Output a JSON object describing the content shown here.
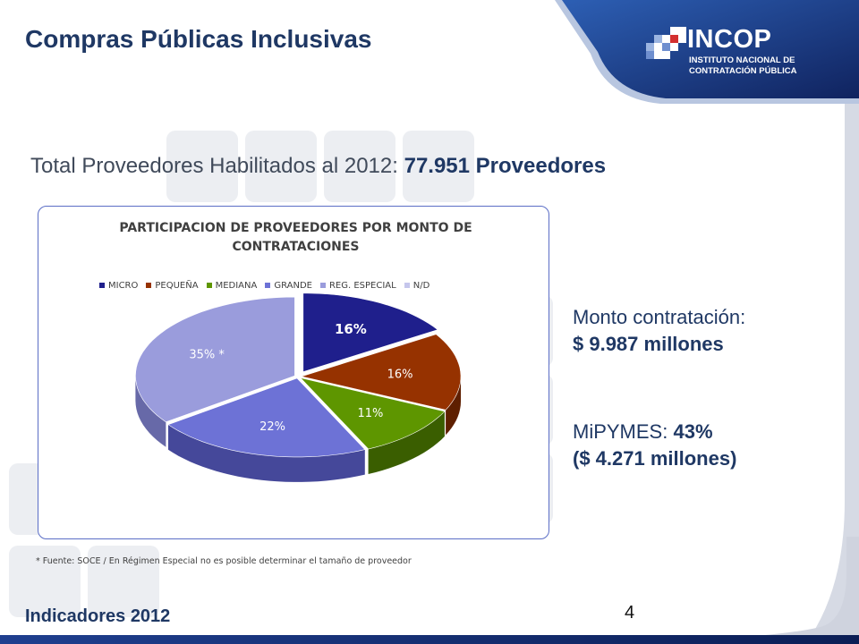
{
  "slide": {
    "title": "Compras Públicas Inclusivas",
    "footer_label": "Indicadores 2012",
    "page_number": "4",
    "brand_color": "#1f3864",
    "accent_color": "#3556a8"
  },
  "logo": {
    "name": "INCOP",
    "line1": "INSTITUTO NACIONAL DE",
    "line2": "CONTRATACIÓN PÚBLICA",
    "mosaic_icon": "pixel-mosaic-icon"
  },
  "summary": {
    "prefix": "Total Proveedores Habilitados al 2012: ",
    "value": "77.951 Proveedores"
  },
  "side_stats": {
    "monto_label": "Monto contratación:",
    "monto_value": "$ 9.987 millones",
    "mipymes_label": "MiPYMES: ",
    "mipymes_pct": "43%",
    "mipymes_amount": "($ 4.271 millones)"
  },
  "chart_data": {
    "type": "pie",
    "title": "PARTICIPACION DE PROVEEDORES POR MONTO DE CONTRATACIONES",
    "title_line1": "PARTICIPACION DE PROVEEDORES POR MONTO DE",
    "title_line2": "CONTRATACIONES",
    "legend_position": "top",
    "categories": [
      "MICRO",
      "PEQUEÑA",
      "MEDIANA",
      "GRANDE",
      "REG. ESPECIAL",
      "N/D"
    ],
    "values": [
      16,
      16,
      11,
      22,
      35,
      0
    ],
    "data_labels": [
      "16%",
      "16%",
      "11%",
      "22%",
      "35% *",
      ""
    ],
    "colors": [
      "#1f1f8c",
      "#963200",
      "#5e9600",
      "#6d72d6",
      "#9a9cdc",
      "#c5c6ec"
    ],
    "side_colors": [
      "#10105a",
      "#5e1f00",
      "#3a5e00",
      "#45489a",
      "#6769a8",
      "#9a9cc8"
    ],
    "label_colors": [
      "#ffffff",
      "#ffffff",
      "#ffffff",
      "#ffffff",
      "#ffffff",
      "#ffffff"
    ],
    "exploded": "MICRO"
  },
  "footnote": "* Fuente: SOCE / En Régimen Especial no es posible determinar el tamaño de proveedor"
}
